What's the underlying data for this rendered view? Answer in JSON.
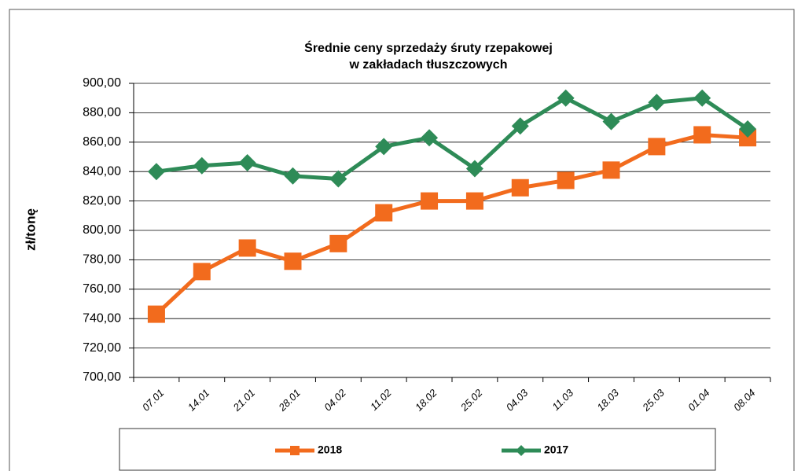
{
  "chart_data": {
    "type": "line",
    "title": [
      "Średnie ceny sprzedaży śruty rzepakowej",
      "w zakładach tłuszczowych"
    ],
    "y_label": "zł/tonę",
    "categories": [
      "07.01",
      "14.01",
      "21.01",
      "28.01",
      "04.02",
      "11.02",
      "18.02",
      "25.02",
      "04.03",
      "11.03",
      "18.03",
      "25.03",
      "01.04",
      "08.04"
    ],
    "series": [
      {
        "name": "2018",
        "color": "#f26b1d",
        "marker": "square",
        "values": [
          743,
          772,
          788,
          779,
          791,
          812,
          820,
          820,
          829,
          834,
          841,
          857,
          865,
          863
        ]
      },
      {
        "name": "2017",
        "color": "#2e8b57",
        "marker": "diamond",
        "values": [
          840,
          844,
          846,
          837,
          835,
          857,
          863,
          842,
          871,
          890,
          874,
          887,
          890,
          869
        ]
      }
    ],
    "ylim": [
      700,
      900
    ],
    "yticks": [
      {
        "value": 700,
        "label": "700,00"
      },
      {
        "value": 720,
        "label": "720,00"
      },
      {
        "value": 740,
        "label": "740,00"
      },
      {
        "value": 760,
        "label": "760,00"
      },
      {
        "value": 780,
        "label": "780,00"
      },
      {
        "value": 800,
        "label": "800,00"
      },
      {
        "value": 820,
        "label": "820,00"
      },
      {
        "value": 840,
        "label": "840,00"
      },
      {
        "value": 860,
        "label": "860,00"
      },
      {
        "value": 880,
        "label": "880,00"
      },
      {
        "value": 900,
        "label": "900,00"
      }
    ],
    "grid": true,
    "legend": "bottom"
  }
}
